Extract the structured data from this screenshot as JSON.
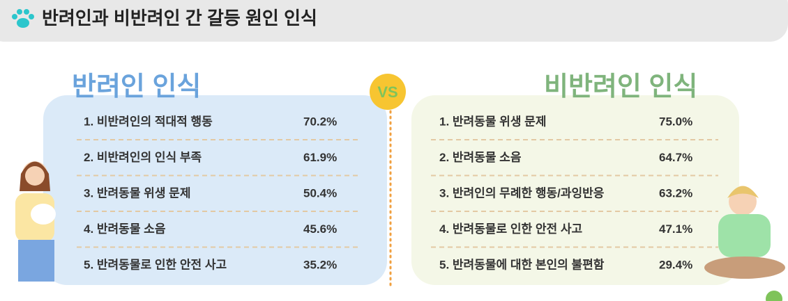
{
  "header": {
    "title": "반려인과 비반려인 간 갈등 원인 인식"
  },
  "vs": "VS",
  "left": {
    "title": "반려인 인식",
    "items": [
      {
        "label": "1. 비반려인의 적대적 행동",
        "value": "70.2%"
      },
      {
        "label": "2. 비반려인의 인식 부족",
        "value": "61.9%"
      },
      {
        "label": "3. 반려동물 위생 문제",
        "value": "50.4%"
      },
      {
        "label": "4. 반려동물 소음",
        "value": "45.6%"
      },
      {
        "label": "5. 반려동물로 인한 안전 사고",
        "value": "35.2%"
      }
    ]
  },
  "right": {
    "title": "비반려인 인식",
    "items": [
      {
        "label": "1. 반려동물 위생 문제",
        "value": "75.0%"
      },
      {
        "label": "2. 반려동물 소음",
        "value": "64.7%"
      },
      {
        "label": "3. 반려인의 무례한 행동/과잉반응",
        "value": "63.2%"
      },
      {
        "label": "4. 반려동물로 인한 안전 사고",
        "value": "47.1%"
      },
      {
        "label": "5. 반려동물에 대한 본인의 불편함",
        "value": "29.4%"
      }
    ]
  }
}
